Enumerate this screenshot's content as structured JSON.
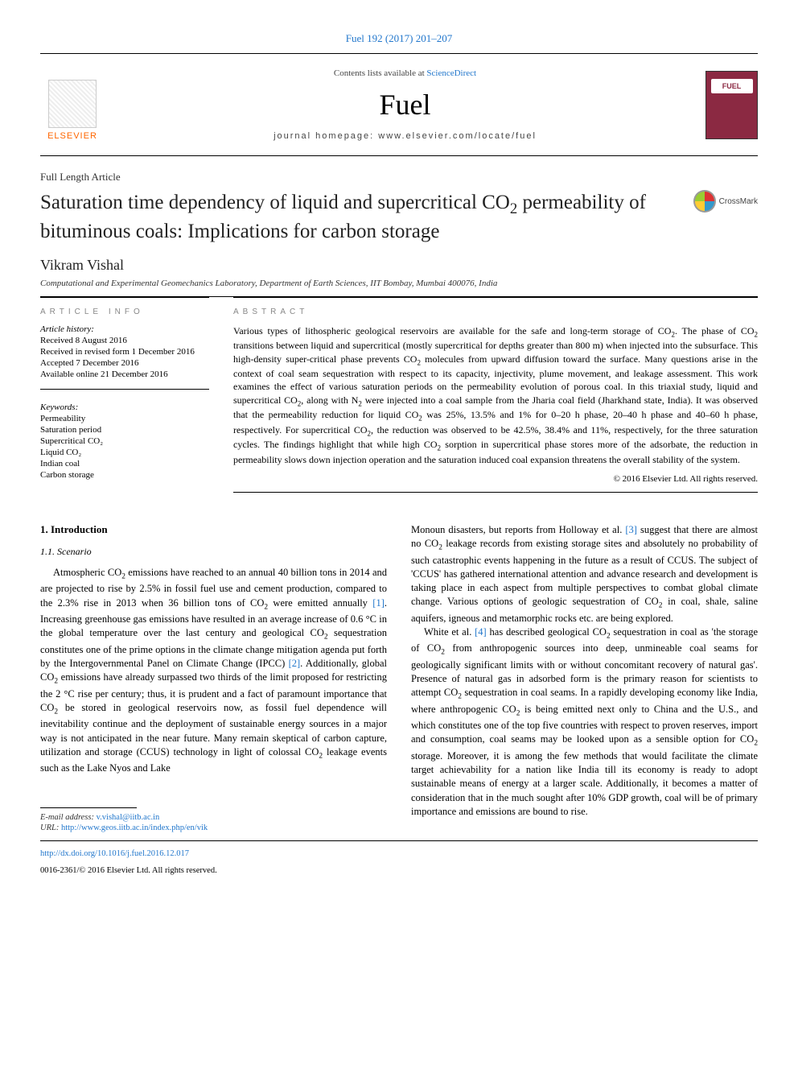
{
  "citation": "Fuel 192 (2017) 201–207",
  "header": {
    "contents_prefix": "Contents lists available at ",
    "contents_link": "ScienceDirect",
    "journal": "Fuel",
    "homepage_prefix": "journal homepage: ",
    "homepage": "www.elsevier.com/locate/fuel",
    "publisher": "ELSEVIER",
    "cover_label": "FUEL"
  },
  "article": {
    "type": "Full Length Article",
    "title_html": "Saturation time dependency of liquid and supercritical CO<sub>2</sub> permeability of bituminous coals: Implications for carbon storage",
    "crossmark": "CrossMark",
    "author": "Vikram Vishal",
    "affiliation": "Computational and Experimental Geomechanics Laboratory, Department of Earth Sciences, IIT Bombay, Mumbai 400076, India"
  },
  "info": {
    "heading": "article info",
    "history_label": "Article history:",
    "history": [
      "Received 8 August 2016",
      "Received in revised form 1 December 2016",
      "Accepted 7 December 2016",
      "Available online 21 December 2016"
    ],
    "keywords_label": "Keywords:",
    "keywords": [
      "Permeability",
      "Saturation period",
      "Supercritical CO₂",
      "Liquid CO₂",
      "Indian coal",
      "Carbon storage"
    ]
  },
  "abstract": {
    "heading": "abstract",
    "text_html": "Various types of lithospheric geological reservoirs are available for the safe and long-term storage of CO<sub>2</sub>. The phase of CO<sub>2</sub> transitions between liquid and supercritical (mostly supercritical for depths greater than 800 m) when injected into the subsurface. This high-density super-critical phase prevents CO<sub>2</sub> molecules from upward diffusion toward the surface. Many questions arise in the context of coal seam sequestration with respect to its capacity, injectivity, plume movement, and leakage assessment. This work examines the effect of various saturation periods on the permeability evolution of porous coal. In this triaxial study, liquid and supercritical CO<sub>2</sub>, along with N<sub>2</sub> were injected into a coal sample from the Jharia coal field (Jharkhand state, India). It was observed that the permeability reduction for liquid CO<sub>2</sub> was 25%, 13.5% and 1% for 0–20 h phase, 20–40 h phase and 40–60 h phase, respectively. For supercritical CO<sub>2</sub>, the reduction was observed to be 42.5%, 38.4% and 11%, respectively, for the three saturation cycles. The findings highlight that while high CO<sub>2</sub> sorption in supercritical phase stores more of the adsorbate, the reduction in permeability slows down injection operation and the saturation induced coal expansion threatens the overall stability of the system.",
    "copyright": "© 2016 Elsevier Ltd. All rights reserved."
  },
  "body": {
    "sec1": "1. Introduction",
    "sec11": "1.1. Scenario",
    "col1_p1_html": "Atmospheric CO<sub>2</sub> emissions have reached to an annual 40 billion tons in 2014 and are projected to rise by 2.5% in fossil fuel use and cement production, compared to the 2.3% rise in 2013 when 36 billion tons of CO<sub>2</sub> were emitted annually <span class='ref-link'>[1]</span>. Increasing greenhouse gas emissions have resulted in an average increase of 0.6 °C in the global temperature over the last century and geological CO<sub>2</sub> sequestration constitutes one of the prime options in the climate change mitigation agenda put forth by the Intergovernmental Panel on Climate Change (IPCC) <span class='ref-link'>[2]</span>. Additionally, global CO<sub>2</sub> emissions have already surpassed two thirds of the limit proposed for restricting the 2 °C rise per century; thus, it is prudent and a fact of paramount importance that CO<sub>2</sub> be stored in geological reservoirs now, as fossil fuel dependence will inevitability continue and the deployment of sustainable energy sources in a major way is not anticipated in the near future. Many remain skeptical of carbon capture, utilization and storage (CCUS) technology in light of colossal CO<sub>2</sub> leakage events such as the Lake Nyos and Lake",
    "col2_p1_html": "Monoun disasters, but reports from Holloway et al. <span class='ref-link'>[3]</span> suggest that there are almost no CO<sub>2</sub> leakage records from existing storage sites and absolutely no probability of such catastrophic events happening in the future as a result of CCUS. The subject of 'CCUS' has gathered international attention and advance research and development is taking place in each aspect from multiple perspectives to combat global climate change. Various options of geologic sequestration of CO<sub>2</sub> in coal, shale, saline aquifers, igneous and metamorphic rocks etc. are being explored.",
    "col2_p2_html": "White et al. <span class='ref-link'>[4]</span> has described geological CO<sub>2</sub> sequestration in coal as 'the storage of CO<sub>2</sub> from anthropogenic sources into deep, unmineable coal seams for geologically significant limits with or without concomitant recovery of natural gas'. Presence of natural gas in adsorbed form is the primary reason for scientists to attempt CO<sub>2</sub> sequestration in coal seams. In a rapidly developing economy like India, where anthropogenic CO<sub>2</sub> is being emitted next only to China and the U.S., and which constitutes one of the top five countries with respect to proven reserves, import and consumption, coal seams may be looked upon as a sensible option for CO<sub>2</sub> storage. Moreover, it is among the few methods that would facilitate the climate target achievability for a nation like India till its economy is ready to adopt sustainable means of energy at a larger scale. Additionally, it becomes a matter of consideration that in the much sought after 10% GDP growth, coal will be of primary importance and emissions are bound to rise."
  },
  "footnotes": {
    "email_label": "E-mail address: ",
    "email": "v.vishal@iitb.ac.in",
    "url_label": "URL: ",
    "url": "http://www.geos.iitb.ac.in/index.php/en/vik"
  },
  "footer": {
    "doi": "http://dx.doi.org/10.1016/j.fuel.2016.12.017",
    "issn_line": "0016-2361/© 2016 Elsevier Ltd. All rights reserved."
  }
}
